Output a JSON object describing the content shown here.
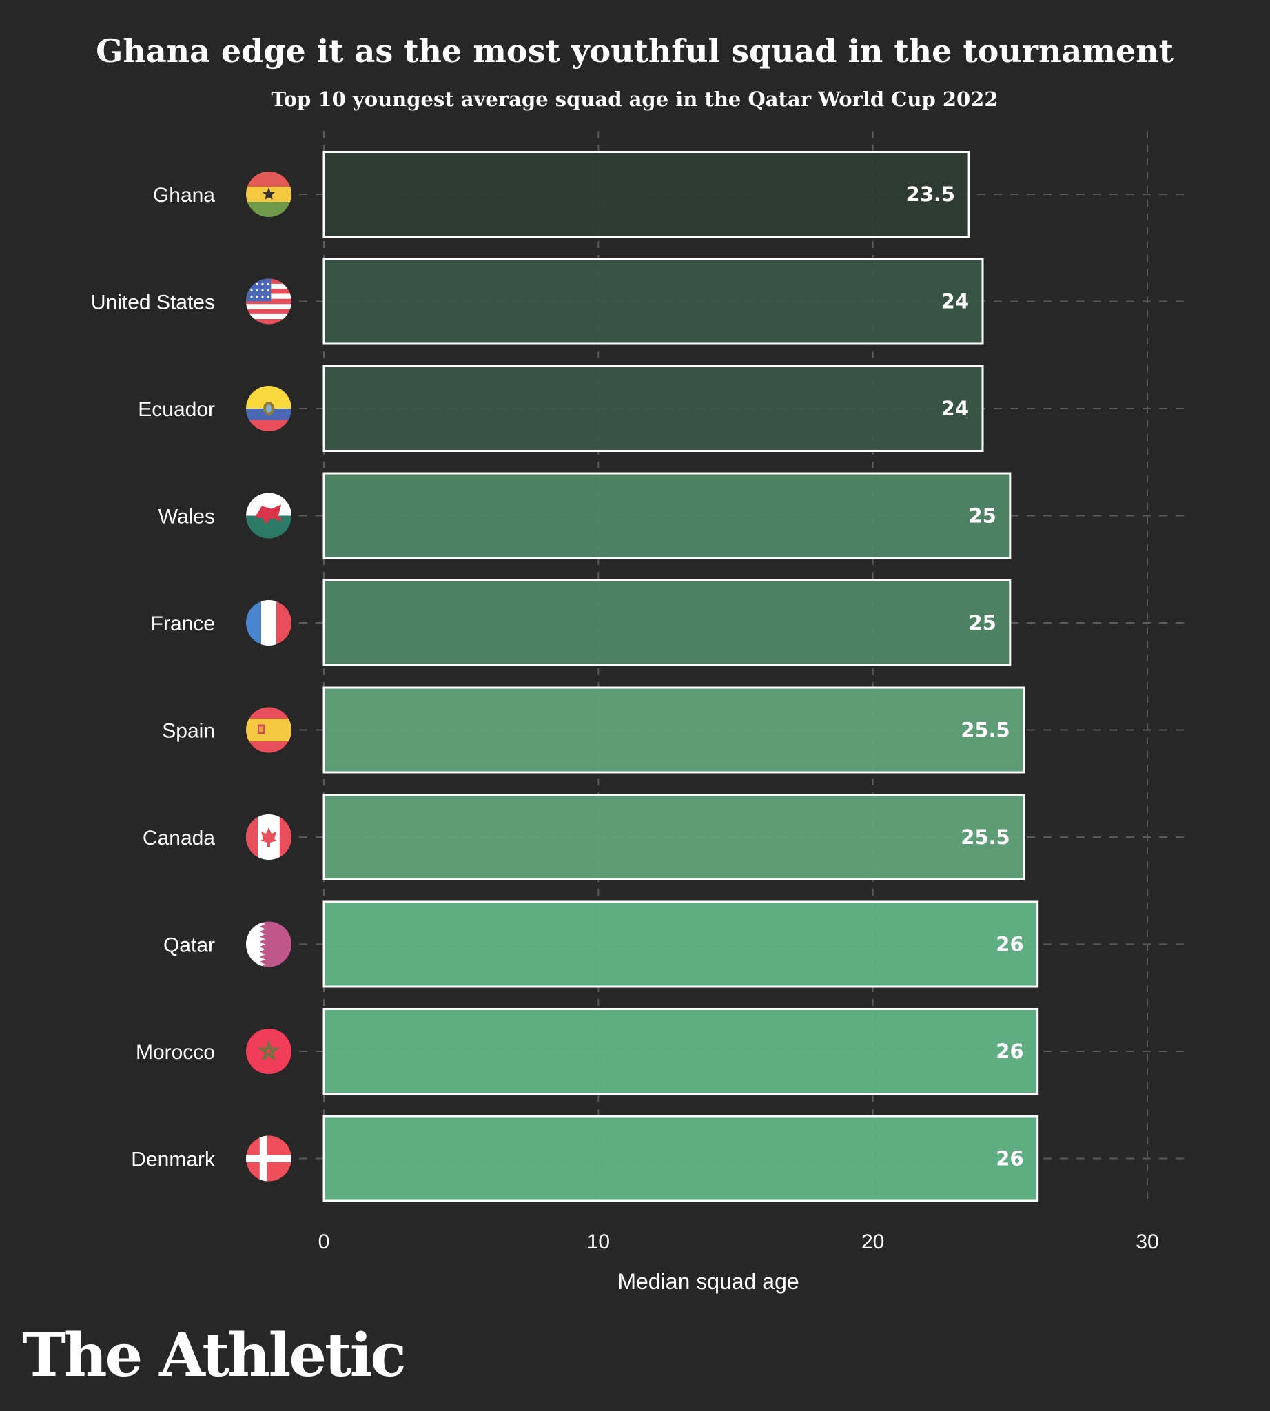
{
  "brand": "The Athletic",
  "chart_data": {
    "type": "bar",
    "orientation": "horizontal",
    "title": "Ghana edge it as the most youthful squad in the tournament",
    "subtitle": "Top 10 youngest average squad age in the Qatar World Cup 2022",
    "xlabel": "Median squad age",
    "ylabel": "",
    "xlim": [
      0,
      30
    ],
    "xticks": [
      0,
      10,
      20,
      30
    ],
    "grid": true,
    "legend": "none",
    "bar_outline_color": "#ffffff",
    "categories": [
      "Ghana",
      "United States",
      "Ecuador",
      "Wales",
      "France",
      "Spain",
      "Canada",
      "Qatar",
      "Morocco",
      "Denmark"
    ],
    "values": [
      23.5,
      24,
      24,
      25,
      25,
      25.5,
      25.5,
      26,
      26,
      26
    ],
    "value_labels": [
      "23.5",
      "24",
      "24",
      "25",
      "25",
      "25.5",
      "25.5",
      "26",
      "26",
      "26"
    ],
    "bar_colors": [
      "#2e3d33",
      "#385848",
      "#385848",
      "#4f8a66",
      "#4f8a66",
      "#63a67d",
      "#63a67d",
      "#63b888",
      "#63b888",
      "#63b888"
    ],
    "flag_icons": [
      "ghana-flag-icon",
      "united-states-flag-icon",
      "ecuador-flag-icon",
      "wales-flag-icon",
      "france-flag-icon",
      "spain-flag-icon",
      "canada-flag-icon",
      "qatar-flag-icon",
      "morocco-flag-icon",
      "denmark-flag-icon"
    ]
  }
}
